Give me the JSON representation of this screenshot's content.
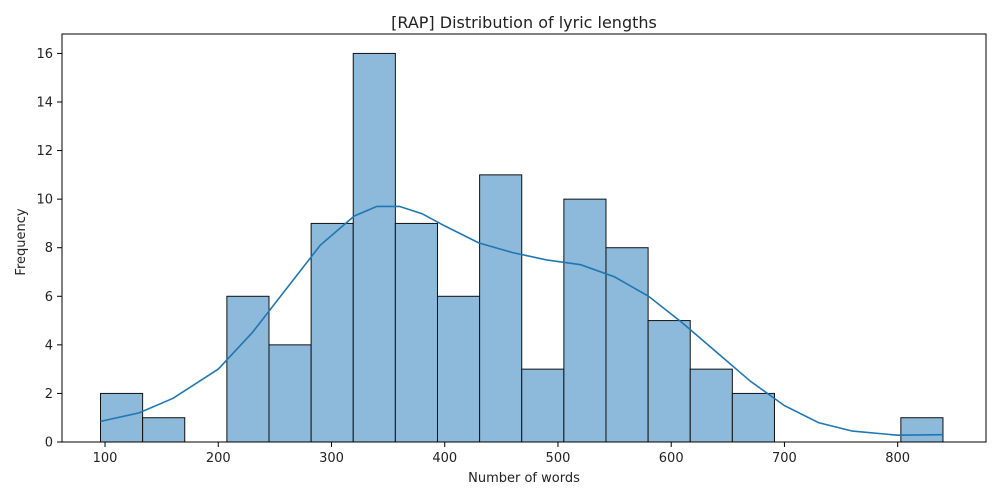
{
  "chart_data": {
    "type": "bar",
    "title": "[RAP] Distribution of lyric lengths",
    "xlabel": "Number of words",
    "ylabel": "Frequency",
    "xlim": [
      62,
      878
    ],
    "ylim": [
      0,
      16.8
    ],
    "xticks": [
      100,
      200,
      300,
      400,
      500,
      600,
      700,
      800
    ],
    "yticks": [
      0,
      2,
      4,
      6,
      8,
      10,
      12,
      14,
      16
    ],
    "bins": [
      {
        "x0": 96,
        "x1": 133.2,
        "count": 2
      },
      {
        "x0": 133.2,
        "x1": 170.4,
        "count": 1
      },
      {
        "x0": 170.4,
        "x1": 207.6,
        "count": 0
      },
      {
        "x0": 207.6,
        "x1": 244.8,
        "count": 6
      },
      {
        "x0": 244.8,
        "x1": 282,
        "count": 4
      },
      {
        "x0": 282,
        "x1": 319.2,
        "count": 9
      },
      {
        "x0": 319.2,
        "x1": 356.4,
        "count": 16
      },
      {
        "x0": 356.4,
        "x1": 393.6,
        "count": 9
      },
      {
        "x0": 393.6,
        "x1": 430.8,
        "count": 6
      },
      {
        "x0": 430.8,
        "x1": 468,
        "count": 11
      },
      {
        "x0": 468,
        "x1": 505.2,
        "count": 3
      },
      {
        "x0": 505.2,
        "x1": 542.4,
        "count": 10
      },
      {
        "x0": 542.4,
        "x1": 579.6,
        "count": 8
      },
      {
        "x0": 579.6,
        "x1": 616.8,
        "count": 5
      },
      {
        "x0": 616.8,
        "x1": 654,
        "count": 3
      },
      {
        "x0": 654,
        "x1": 691.2,
        "count": 2
      },
      {
        "x0": 691.2,
        "x1": 728.4,
        "count": 0
      },
      {
        "x0": 728.4,
        "x1": 765.6,
        "count": 0
      },
      {
        "x0": 765.6,
        "x1": 802.8,
        "count": 0
      },
      {
        "x0": 802.8,
        "x1": 840,
        "count": 1
      }
    ],
    "kde": [
      [
        96,
        0.85
      ],
      [
        130,
        1.2
      ],
      [
        160,
        1.8
      ],
      [
        200,
        3.0
      ],
      [
        230,
        4.5
      ],
      [
        260,
        6.3
      ],
      [
        290,
        8.1
      ],
      [
        320,
        9.3
      ],
      [
        340,
        9.7
      ],
      [
        360,
        9.7
      ],
      [
        380,
        9.4
      ],
      [
        400,
        8.9
      ],
      [
        430,
        8.2
      ],
      [
        460,
        7.8
      ],
      [
        490,
        7.5
      ],
      [
        520,
        7.3
      ],
      [
        550,
        6.8
      ],
      [
        580,
        6.0
      ],
      [
        610,
        4.9
      ],
      [
        640,
        3.7
      ],
      [
        670,
        2.5
      ],
      [
        700,
        1.5
      ],
      [
        730,
        0.8
      ],
      [
        760,
        0.45
      ],
      [
        800,
        0.28
      ],
      [
        840,
        0.3
      ]
    ],
    "grid": false,
    "colors": {
      "bar_fill": "#8db9da",
      "bar_edge": "#111111",
      "kde": "#1f77b4",
      "axis": "#000000"
    }
  }
}
